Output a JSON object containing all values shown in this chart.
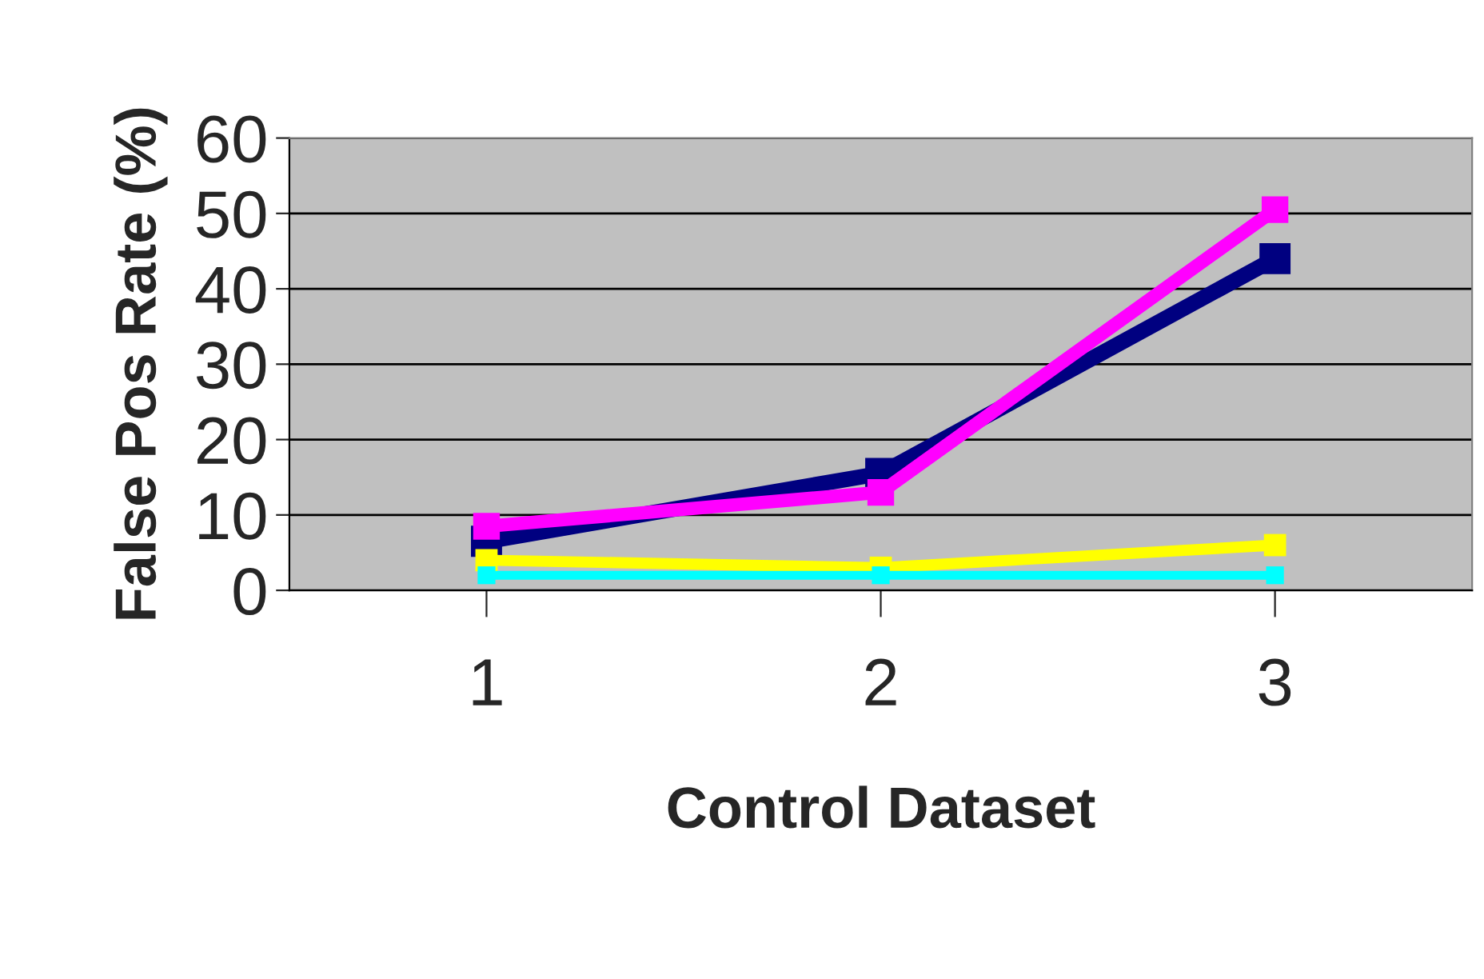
{
  "chart_data": {
    "type": "line",
    "xlabel": "Control Dataset",
    "ylabel": "False Pos Rate (%)",
    "categories": [
      "1",
      "2",
      "3"
    ],
    "series": [
      {
        "color": "#000080",
        "values": [
          6.5,
          15.5,
          44
        ]
      },
      {
        "color": "#ff00ff",
        "values": [
          8.5,
          13,
          50.5
        ]
      },
      {
        "color": "#ffff00",
        "values": [
          4,
          3,
          6
        ]
      },
      {
        "color": "#00ffff",
        "values": [
          2,
          2,
          2
        ]
      }
    ],
    "ylim": [
      0,
      60
    ],
    "yticks": [
      0,
      10,
      20,
      30,
      40,
      50,
      60
    ],
    "grid": "y",
    "marker": "square",
    "line_style": "solid"
  }
}
